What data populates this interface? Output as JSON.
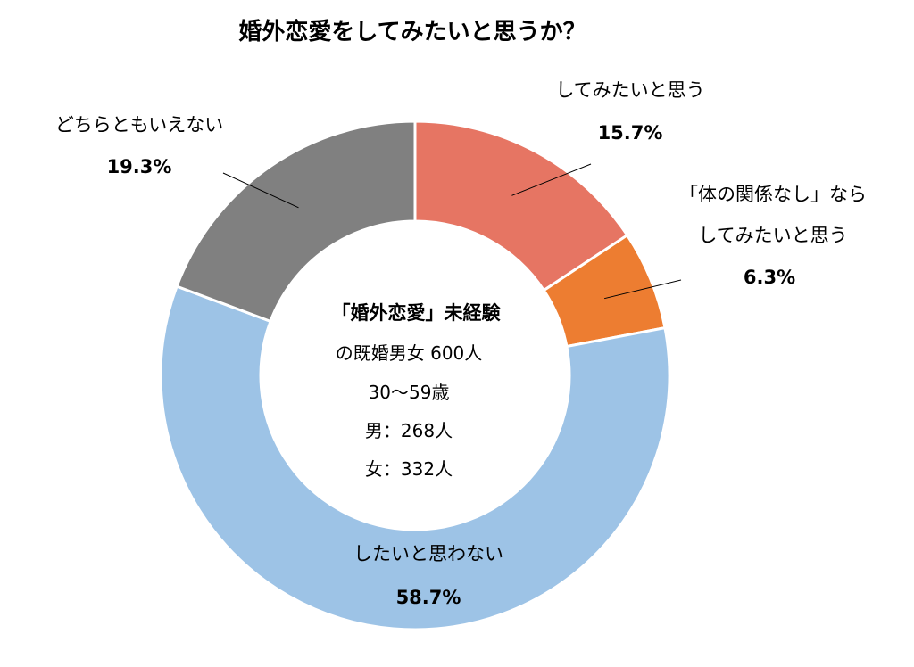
{
  "chart_data": {
    "type": "pie",
    "donut": true,
    "title": "婚外恋愛をしてみたいと思うか？",
    "slices": [
      {
        "label": "してみたいと思う",
        "value_label": "15.7%",
        "value": 15.7,
        "color": "#e67563"
      },
      {
        "label": "「体の関係なし」なら\nしてみたいと思う",
        "value_label": "6.3%",
        "value": 6.3,
        "color": "#ed7d31"
      },
      {
        "label": "したいと思わない",
        "value_label": "58.7%",
        "value": 58.7,
        "color": "#9dc3e6"
      },
      {
        "label": "どちらともいえない",
        "value_label": "19.3%",
        "value": 19.3,
        "color": "#808080"
      }
    ],
    "center_text": {
      "line1": "「婚外恋愛」未経験",
      "line2": "の既婚男女 600人",
      "line3": "30〜59歳",
      "line4": "男：268人",
      "line5": "女：332人"
    }
  }
}
